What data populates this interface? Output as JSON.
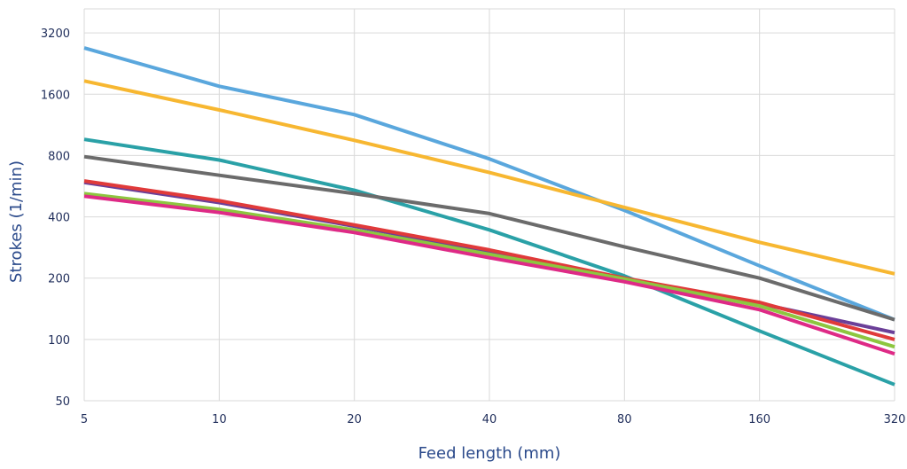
{
  "chart_data": {
    "type": "line",
    "title": "",
    "xlabel": "Feed length (mm)",
    "ylabel": "Strokes (1/min)",
    "x": [
      5,
      10,
      20,
      40,
      80,
      160,
      320
    ],
    "xscale": "log2",
    "yscale": "log2",
    "xlim": [
      5,
      320
    ],
    "ylim": [
      50,
      4200
    ],
    "x_ticks": [
      "5",
      "10",
      "20",
      "40",
      "80",
      "160",
      "320"
    ],
    "y_ticks": [
      {
        "value": 50,
        "label": "50"
      },
      {
        "value": 100,
        "label": "100"
      },
      {
        "value": 200,
        "label": "200"
      },
      {
        "value": 400,
        "label": "400"
      },
      {
        "value": 800,
        "label": "800"
      },
      {
        "value": 1600,
        "label": "1600"
      },
      {
        "value": 3200,
        "label": "3200"
      }
    ],
    "grid": true,
    "legend": "none",
    "series": [
      {
        "color": "#5aa7dd",
        "values": [
          2700,
          1750,
          1270,
          770,
          430,
          230,
          125
        ]
      },
      {
        "color": "#f7b731",
        "values": [
          1860,
          1340,
          950,
          660,
          445,
          300,
          210
        ]
      },
      {
        "color": "#2aa1a7",
        "values": [
          960,
          760,
          540,
          345,
          205,
          110,
          60
        ]
      },
      {
        "color": "#6b6b6b",
        "values": [
          790,
          640,
          520,
          415,
          285,
          200,
          125
        ]
      },
      {
        "color": "#6b3f98",
        "values": [
          590,
          470,
          360,
          270,
          195,
          150,
          108
        ]
      },
      {
        "color": "#e03a3a",
        "values": [
          600,
          480,
          365,
          275,
          200,
          152,
          100
        ]
      },
      {
        "color": "#8dc63f",
        "values": [
          520,
          435,
          345,
          262,
          198,
          146,
          92
        ]
      },
      {
        "color": "#de2a86",
        "values": [
          505,
          420,
          335,
          252,
          192,
          140,
          85
        ]
      }
    ]
  }
}
